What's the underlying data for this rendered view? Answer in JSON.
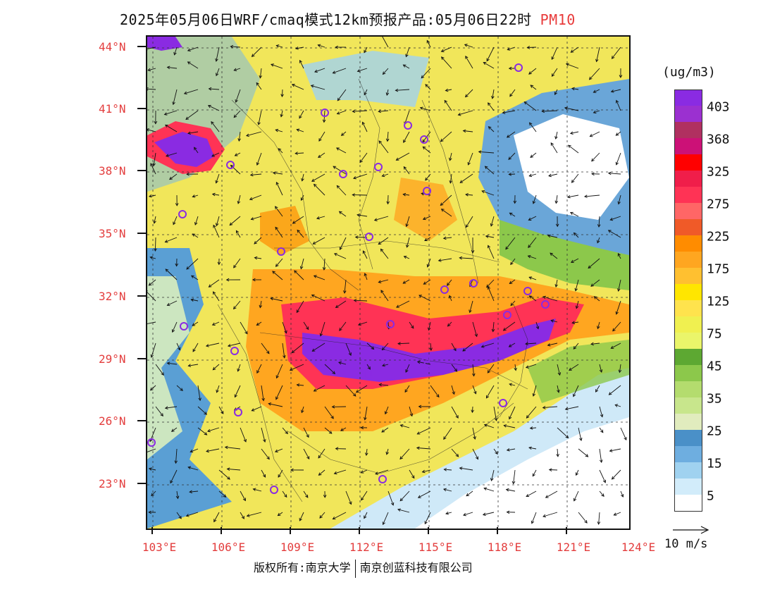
{
  "header": {
    "title": "2025年05月06日WRF/cmaq模式12km预报产品:05月06日22时",
    "pollutant": "PM10"
  },
  "axes": {
    "lat_labels": [
      "44°N",
      "41°N",
      "38°N",
      "35°N",
      "32°N",
      "29°N",
      "26°N",
      "23°N"
    ],
    "lon_labels": [
      "103°E",
      "106°E",
      "109°E",
      "112°E",
      "115°E",
      "118°E",
      "121°E",
      "124°E"
    ]
  },
  "legend": {
    "unit": "(ug/m3)",
    "levels": [
      {
        "label": "403",
        "color": "#8a2be2"
      },
      {
        "label": "",
        "color": "#9b30d0"
      },
      {
        "label": "368",
        "color": "#b03060"
      },
      {
        "label": "",
        "color": "#cc1177"
      },
      {
        "label": "325",
        "color": "#ff0000"
      },
      {
        "label": "",
        "color": "#f01e4a"
      },
      {
        "label": "275",
        "color": "#ff3355"
      },
      {
        "label": "",
        "color": "#ff6666"
      },
      {
        "label": "225",
        "color": "#f05a28"
      },
      {
        "label": "",
        "color": "#ff8c00"
      },
      {
        "label": "175",
        "color": "#ffa620"
      },
      {
        "label": "",
        "color": "#ffc030"
      },
      {
        "label": "125",
        "color": "#ffe600"
      },
      {
        "label": "",
        "color": "#ffe34d"
      },
      {
        "label": "75",
        "color": "#f0f050"
      },
      {
        "label": "",
        "color": "#eaf56a"
      },
      {
        "label": "45",
        "color": "#5da832"
      },
      {
        "label": "",
        "color": "#8cc84b"
      },
      {
        "label": "35",
        "color": "#b4dc6e"
      },
      {
        "label": "",
        "color": "#c8e68c"
      },
      {
        "label": "25",
        "color": "#e1ecbe"
      },
      {
        "label": "",
        "color": "#4a90c8"
      },
      {
        "label": "15",
        "color": "#6eaee0"
      },
      {
        "label": "",
        "color": "#a0d2f0"
      },
      {
        "label": "5",
        "color": "#d2ecfa"
      },
      {
        "label": "",
        "color": "#ffffff"
      }
    ],
    "wind_reference": "10 m/s"
  },
  "footer": {
    "copyright_left": "版权所有:南京大学",
    "copyright_right": "南京创蓝科技有限公司"
  },
  "cities": [
    "city-marker-1",
    "city-marker-2",
    "city-marker-3",
    "city-marker-4",
    "city-marker-5",
    "city-marker-6",
    "city-marker-7",
    "city-marker-8",
    "city-marker-9",
    "city-marker-10",
    "city-marker-11",
    "city-marker-12",
    "city-marker-13",
    "city-marker-14",
    "city-marker-15",
    "city-marker-16",
    "city-marker-17",
    "city-marker-18",
    "city-marker-19",
    "city-marker-20",
    "city-marker-21",
    "city-marker-22",
    "city-marker-23",
    "city-marker-24",
    "city-marker-25",
    "city-marker-26",
    "city-marker-27"
  ]
}
